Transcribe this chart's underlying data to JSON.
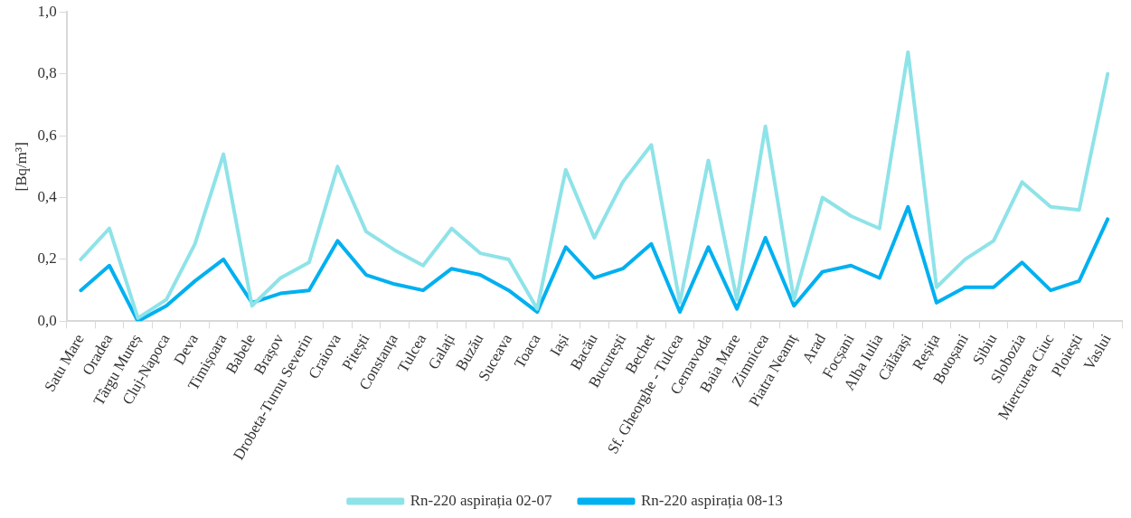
{
  "chart_data": {
    "type": "line",
    "ylabel": "[Bq/m³]",
    "categories": [
      "Satu Mare",
      "Oradea",
      "Târgu Mureș",
      "Cluj-Napoca",
      "Deva",
      "Timișoara",
      "Babele",
      "Brașov",
      "Drobeta-Turnu Severin",
      "Craiova",
      "Pitești",
      "Constanța",
      "Tulcea",
      "Galați",
      "Buzău",
      "Suceava",
      "Toaca",
      "Iași",
      "Bacău",
      "București",
      "Bechet",
      "Sf. Gheorghe - Tulcea",
      "Cernavoda",
      "Baia Mare",
      "Zimnicea",
      "Piatra Neamț",
      "Arad",
      "Focșani",
      "Alba Iulia",
      "Călărași",
      "Reșița",
      "Botoșani",
      "Sibiu",
      "Slobozia",
      "Miercurea Ciuc",
      "Ploiești",
      "Vaslui"
    ],
    "series": [
      {
        "name": "Rn-220 aspirația 02-07",
        "color": "#8ee3e8",
        "values": [
          0.2,
          0.3,
          0.01,
          0.07,
          0.25,
          0.54,
          0.05,
          0.14,
          0.19,
          0.5,
          0.29,
          0.23,
          0.18,
          0.3,
          0.22,
          0.2,
          0.04,
          0.49,
          0.27,
          0.45,
          0.57,
          0.06,
          0.52,
          0.07,
          0.63,
          0.07,
          0.4,
          0.34,
          0.3,
          0.87,
          0.11,
          0.2,
          0.26,
          0.45,
          0.37,
          0.36,
          0.8
        ]
      },
      {
        "name": "Rn-220 aspirația 08-13",
        "color": "#00b0f0",
        "values": [
          0.1,
          0.18,
          0.0,
          0.05,
          0.13,
          0.2,
          0.06,
          0.09,
          0.1,
          0.26,
          0.15,
          0.12,
          0.1,
          0.17,
          0.15,
          0.1,
          0.03,
          0.24,
          0.14,
          0.17,
          0.25,
          0.03,
          0.24,
          0.04,
          0.27,
          0.05,
          0.16,
          0.18,
          0.14,
          0.37,
          0.06,
          0.11,
          0.11,
          0.19,
          0.1,
          0.13,
          0.33
        ]
      }
    ],
    "ylim": [
      0,
      1
    ],
    "yticks": [
      {
        "value": 0,
        "label": "0,0"
      },
      {
        "value": 0.2,
        "label": "0,2"
      },
      {
        "value": 0.4,
        "label": "0,4"
      },
      {
        "value": 0.6,
        "label": "0,6"
      },
      {
        "value": 0.8,
        "label": "0,8"
      },
      {
        "value": 1,
        "label": "1,0"
      }
    ],
    "grid": false,
    "legend": "bottom",
    "marker": "none",
    "line_style": "solid"
  }
}
